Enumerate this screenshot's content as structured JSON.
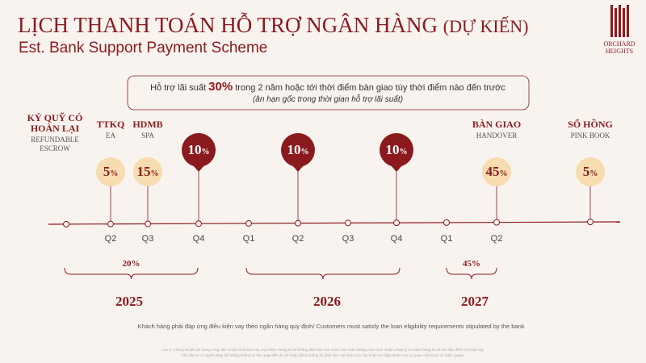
{
  "header": {
    "title": "LỊCH THANH TOÁN HỖ TRỢ NGÂN HÀNG",
    "title_note": "(DỰ KIẾN)",
    "subtitle": "Est. Bank Support Payment Scheme"
  },
  "logo": {
    "line1": "ORCHARD",
    "line2": "HEIGHTS"
  },
  "notice": {
    "before": "Hỗ trợ lãi suất",
    "highlight": "30%",
    "after": "trong 2 năm hoặc tới thời điểm bàn giao tùy thời điểm nào đến trước",
    "sub": "(ân hạn gốc trong thời gian hỗ trợ lãi suất)"
  },
  "milestones": [
    {
      "title": "KÝ QUỸ CÓ HOÀN LẠI",
      "subtitle": "REFUNDABLE ESCROW"
    },
    {
      "title": "TTKQ",
      "subtitle": "EA"
    },
    {
      "title": "HDMB",
      "subtitle": "SPA"
    },
    {
      "title": "BÀN GIAO",
      "subtitle": "HANDOVER"
    },
    {
      "title": "SỔ HỒNG",
      "subtitle": "PINK BOOK"
    }
  ],
  "payments": [
    {
      "amount": 5,
      "unit": "%",
      "style": "light"
    },
    {
      "amount": 15,
      "unit": "%",
      "style": "light"
    },
    {
      "amount": 10,
      "unit": "%",
      "style": "dark"
    },
    {
      "amount": 10,
      "unit": "%",
      "style": "dark"
    },
    {
      "amount": 10,
      "unit": "%",
      "style": "dark"
    },
    {
      "amount": 45,
      "unit": "%",
      "style": "light"
    },
    {
      "amount": 5,
      "unit": "%",
      "style": "light"
    }
  ],
  "quarters": [
    "Q2",
    "Q3",
    "Q4",
    "Q1",
    "Q2",
    "Q3",
    "Q4",
    "Q1",
    "Q2"
  ],
  "groups": [
    {
      "label": "20%",
      "year": "2025"
    },
    {
      "year": "2026"
    },
    {
      "label": "45%",
      "year": "2027"
    }
  ],
  "footnote": "Khách hàng phải đáp ứng điều kiện vay theo ngân hàng quy định/ Customers must satisfy the loan eligibility requirements stipulated by the bank",
  "disclaimer": [
    "Lưu ý: Chúng tôi đã cẩn trọng trong việc chuẩn bị tài liệu này, tuy nhiên chúng tôi sẽ không đảm bảo tính chính xác hoặc không chịu trách nhiệm pháp lý cho bản thông tin và các đặc điểm kỹ thuật này.",
    "Chủ đầu tư có quyền thay đổi những thông tin liên quan đến dự án hoặc bất kỳ thông tin phát sinh nào theo yêu cầu hoặc sự chấp thuận của cơ quan nhà nước có thẩm quyền."
  ]
}
